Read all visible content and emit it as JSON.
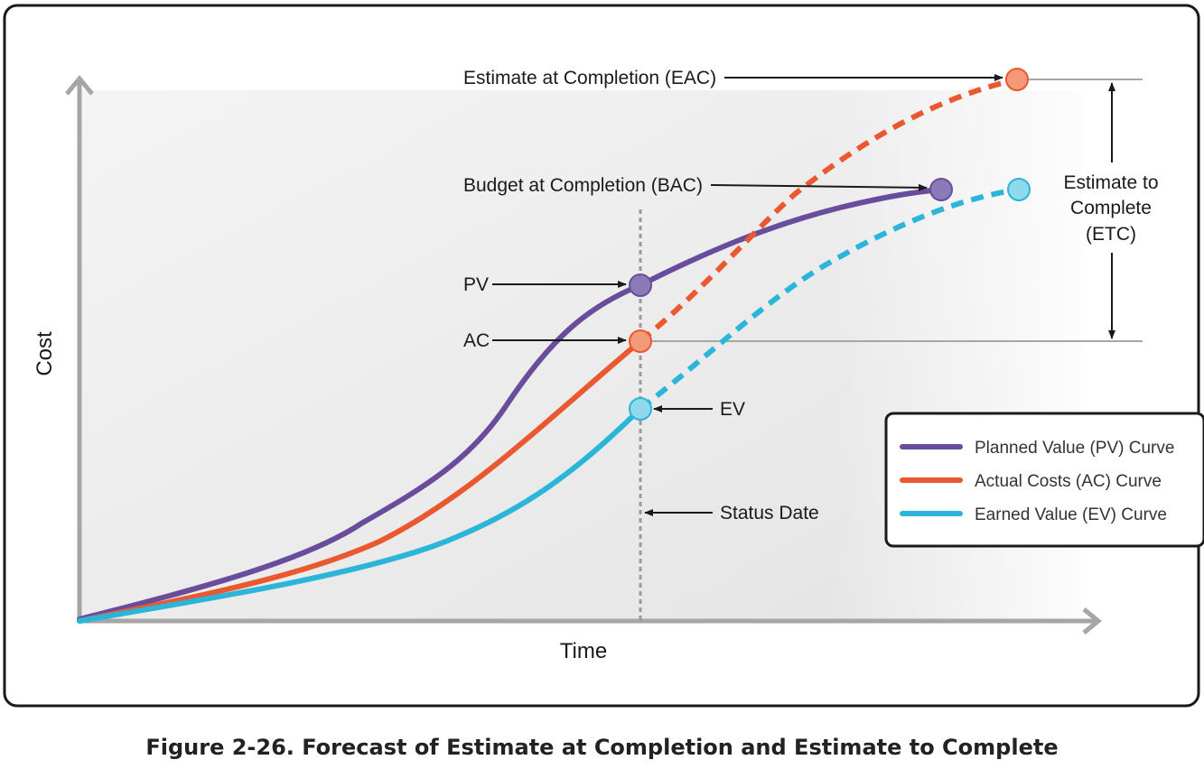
{
  "caption": "Figure 2-26. Forecast of Estimate at Completion and Estimate to Complete",
  "axes": {
    "y_label": "Cost",
    "x_label": "Time"
  },
  "annotations": {
    "eac": "Estimate at Completion (EAC)",
    "bac": "Budget at Completion (BAC)",
    "pv": "PV",
    "ac": "AC",
    "ev": "EV",
    "status_date": "Status Date",
    "etc_line1": "Estimate to",
    "etc_line2": "Complete",
    "etc_line3": "(ETC)"
  },
  "legend": {
    "items": [
      {
        "label": "Planned Value (PV) Curve",
        "color": "#6a4c9c"
      },
      {
        "label": "Actual Costs (AC) Curve",
        "color": "#e9582f"
      },
      {
        "label": "Earned Value (EV) Curve",
        "color": "#2bb5d8"
      }
    ]
  },
  "colors": {
    "pv": "#6a4c9c",
    "pv_marker": "#8a7ab8",
    "ac": "#e9582f",
    "ac_marker": "#f59a78",
    "ev": "#2bb5d8",
    "ev_marker": "#8fd8ee",
    "axis": "#a6a6a6",
    "status_line": "#9a9a9a"
  }
}
